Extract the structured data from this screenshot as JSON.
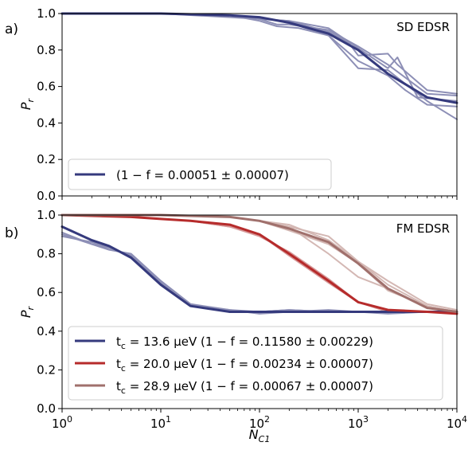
{
  "chart_data": [
    {
      "type": "line",
      "panel_label": "a)",
      "title": "SD EDSR",
      "xlabel": "",
      "ylabel": "P_r",
      "xscale": "log",
      "xlim": [
        1,
        10000
      ],
      "ylim": [
        0.0,
        1.0
      ],
      "yticks": [
        "0.0",
        "0.2",
        "0.4",
        "0.6",
        "0.8",
        "1.0"
      ],
      "grid": false,
      "legend_position": "lower-left",
      "series": [
        {
          "name": "(1 − f = 0.00051 ± 0.00007)",
          "color": "#353a7d",
          "emphasis": true,
          "x": [
            1,
            10,
            50,
            100,
            200,
            500,
            1000,
            2000,
            5000,
            10000
          ],
          "y": [
            1.0,
            1.0,
            0.99,
            0.98,
            0.95,
            0.89,
            0.8,
            0.67,
            0.54,
            0.51
          ]
        },
        {
          "color": "#8d8fb6",
          "emphasis": false,
          "x": [
            1,
            10,
            50,
            100,
            150,
            200,
            500,
            1000,
            2000,
            5000,
            10000
          ],
          "y": [
            1.0,
            1.0,
            0.99,
            0.97,
            0.94,
            0.94,
            0.91,
            0.82,
            0.72,
            0.56,
            0.55
          ]
        },
        {
          "color": "#8d8fb6",
          "emphasis": false,
          "x": [
            1,
            10,
            50,
            100,
            150,
            250,
            500,
            1000,
            2000,
            5000,
            10000
          ],
          "y": [
            1.0,
            1.0,
            0.99,
            0.96,
            0.93,
            0.92,
            0.88,
            0.7,
            0.69,
            0.52,
            0.42
          ]
        },
        {
          "color": "#8d8fb6",
          "emphasis": false,
          "x": [
            1,
            10,
            50,
            100,
            200,
            500,
            800,
            1000,
            2000,
            2500,
            5000,
            10000
          ],
          "y": [
            1.0,
            1.0,
            0.98,
            0.97,
            0.96,
            0.9,
            0.84,
            0.77,
            0.78,
            0.72,
            0.58,
            0.56
          ]
        },
        {
          "color": "#8d8fb6",
          "emphasis": false,
          "x": [
            1,
            10,
            50,
            100,
            200,
            500,
            1000,
            2000,
            3000,
            5000,
            10000
          ],
          "y": [
            1.0,
            1.0,
            0.99,
            0.98,
            0.95,
            0.88,
            0.74,
            0.66,
            0.58,
            0.5,
            0.49
          ]
        },
        {
          "color": "#8d8fb6",
          "emphasis": false,
          "x": [
            1,
            10,
            50,
            100,
            200,
            500,
            1000,
            2000,
            2500,
            4000,
            10000
          ],
          "y": [
            1.0,
            1.0,
            0.99,
            0.97,
            0.96,
            0.92,
            0.81,
            0.7,
            0.76,
            0.54,
            0.52
          ]
        }
      ]
    },
    {
      "type": "line",
      "panel_label": "b)",
      "title": "FM EDSR",
      "xlabel": "N_C1",
      "ylabel": "P_r",
      "xscale": "log",
      "xlim": [
        1,
        10000
      ],
      "ylim": [
        0.0,
        1.0
      ],
      "xticks": [
        "10^0",
        "10^1",
        "10^2",
        "10^3",
        "10^4"
      ],
      "yticks": [
        "0.0",
        "0.2",
        "0.4",
        "0.6",
        "0.8",
        "1.0"
      ],
      "grid": false,
      "legend_position": "lower-left",
      "series": [
        {
          "name": "t_c = 13.6 μeV (1 − f = 0.11580 ± 0.00229)",
          "color": "#353a7d",
          "emphasis": true,
          "x": [
            1,
            2,
            3,
            5,
            10,
            20,
            50,
            100,
            200,
            500,
            1000,
            2000,
            5000,
            10000
          ],
          "y": [
            0.94,
            0.87,
            0.84,
            0.78,
            0.64,
            0.53,
            0.5,
            0.5,
            0.5,
            0.5,
            0.5,
            0.5,
            0.5,
            0.5
          ]
        },
        {
          "color": "#8d8fb6",
          "emphasis": false,
          "x": [
            1,
            2,
            3,
            5,
            10,
            20,
            50,
            100,
            200,
            500,
            1000,
            2000,
            5000,
            10000
          ],
          "y": [
            0.9,
            0.85,
            0.82,
            0.8,
            0.66,
            0.54,
            0.51,
            0.5,
            0.51,
            0.5,
            0.5,
            0.5,
            0.5,
            0.5
          ]
        },
        {
          "color": "#8d8fb6",
          "emphasis": false,
          "x": [
            1,
            2,
            3,
            5,
            10,
            20,
            50,
            100,
            200,
            500,
            1000,
            2000,
            5000,
            10000
          ],
          "y": [
            0.89,
            0.86,
            0.83,
            0.79,
            0.65,
            0.53,
            0.51,
            0.49,
            0.5,
            0.51,
            0.5,
            0.49,
            0.5,
            0.5
          ]
        },
        {
          "color": "#8d8fb6",
          "emphasis": false,
          "x": [
            1,
            2,
            3,
            5,
            10,
            20,
            50,
            100,
            200,
            500,
            1000,
            2000,
            5000,
            10000
          ],
          "y": [
            0.91,
            0.85,
            0.83,
            0.79,
            0.66,
            0.54,
            0.5,
            0.5,
            0.51,
            0.5,
            0.5,
            0.5,
            0.5,
            0.5
          ]
        },
        {
          "name": "t_c = 20.0 μeV (1 − f = 0.00234 ± 0.00007)",
          "color": "#b62b2b",
          "emphasis": true,
          "x": [
            1,
            5,
            10,
            20,
            50,
            100,
            200,
            500,
            1000,
            2000,
            5000,
            10000
          ],
          "y": [
            1.0,
            0.99,
            0.98,
            0.97,
            0.95,
            0.9,
            0.8,
            0.66,
            0.55,
            0.51,
            0.5,
            0.49
          ]
        },
        {
          "color": "#d69a9a",
          "emphasis": false,
          "x": [
            1,
            5,
            10,
            20,
            50,
            100,
            200,
            500,
            1000,
            2000,
            5000,
            10000
          ],
          "y": [
            1.0,
            0.99,
            0.98,
            0.97,
            0.94,
            0.89,
            0.81,
            0.67,
            0.55,
            0.5,
            0.5,
            0.49
          ]
        },
        {
          "color": "#d69a9a",
          "emphasis": false,
          "x": [
            1,
            5,
            10,
            20,
            50,
            100,
            200,
            500,
            1000,
            2000,
            5000,
            10000
          ],
          "y": [
            1.0,
            0.99,
            0.98,
            0.97,
            0.94,
            0.9,
            0.79,
            0.65,
            0.55,
            0.51,
            0.5,
            0.49
          ]
        },
        {
          "name": "t_c = 28.9 μeV (1 − f = 0.00067 ± 0.00007)",
          "color": "#a0706c",
          "emphasis": true,
          "x": [
            1,
            10,
            50,
            100,
            200,
            500,
            1000,
            2000,
            5000,
            10000
          ],
          "y": [
            1.0,
            1.0,
            0.99,
            0.97,
            0.93,
            0.86,
            0.75,
            0.62,
            0.52,
            0.5
          ]
        },
        {
          "color": "#d4b8b4",
          "emphasis": false,
          "x": [
            1,
            10,
            50,
            100,
            200,
            500,
            1000,
            2000,
            5000,
            10000
          ],
          "y": [
            1.0,
            1.0,
            0.99,
            0.97,
            0.94,
            0.89,
            0.76,
            0.64,
            0.53,
            0.5
          ]
        },
        {
          "color": "#d4b8b4",
          "emphasis": false,
          "x": [
            1,
            10,
            50,
            100,
            200,
            500,
            1000,
            2000,
            5000,
            10000
          ],
          "y": [
            1.0,
            1.0,
            0.99,
            0.97,
            0.94,
            0.8,
            0.68,
            0.62,
            0.52,
            0.5
          ]
        },
        {
          "color": "#d4b8b4",
          "emphasis": false,
          "x": [
            1,
            10,
            50,
            100,
            200,
            500,
            1000,
            2000,
            5000,
            10000
          ],
          "y": [
            1.0,
            1.0,
            0.99,
            0.97,
            0.95,
            0.87,
            0.76,
            0.66,
            0.54,
            0.51
          ]
        },
        {
          "color": "#d4b8b4",
          "emphasis": false,
          "x": [
            1,
            10,
            50,
            100,
            200,
            500,
            1000,
            2000,
            5000,
            10000
          ],
          "y": [
            1.0,
            1.0,
            0.99,
            0.97,
            0.92,
            0.85,
            0.75,
            0.61,
            0.53,
            0.5
          ]
        }
      ]
    }
  ]
}
